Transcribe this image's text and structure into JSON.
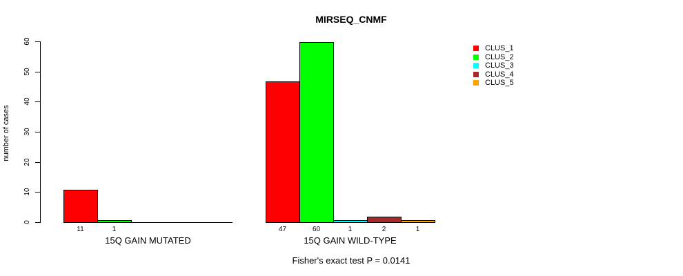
{
  "chart_data": {
    "type": "bar",
    "title": "MIRSEQ_CNMF",
    "ylabel": "number of cases",
    "xlabel": "",
    "caption": "Fisher's exact test P = 0.0141",
    "ylim": [
      0,
      60
    ],
    "yticks": [
      0,
      10,
      20,
      30,
      40,
      50,
      60
    ],
    "grid": "off",
    "legend": {
      "position": "right",
      "entries": [
        {
          "label": "CLUS_1",
          "color": "#FF0000"
        },
        {
          "label": "CLUS_2",
          "color": "#00FF00"
        },
        {
          "label": "CLUS_3",
          "color": "#00FFFF"
        },
        {
          "label": "CLUS_4",
          "color": "#A52A2A"
        },
        {
          "label": "CLUS_5",
          "color": "#FFA500"
        }
      ]
    },
    "series_names": [
      "CLUS_1",
      "CLUS_2",
      "CLUS_3",
      "CLUS_4",
      "CLUS_5"
    ],
    "groups": [
      {
        "label": "15Q GAIN MUTATED",
        "values": [
          11,
          1,
          0,
          0,
          0
        ],
        "shown_value_labels": [
          "11",
          "1"
        ]
      },
      {
        "label": "15Q GAIN WILD-TYPE",
        "values": [
          47,
          60,
          1,
          2,
          1
        ],
        "shown_value_labels": [
          "47",
          "60",
          "1",
          "2",
          "1"
        ]
      }
    ],
    "value_labels_shown_for_zero_bars": false
  }
}
